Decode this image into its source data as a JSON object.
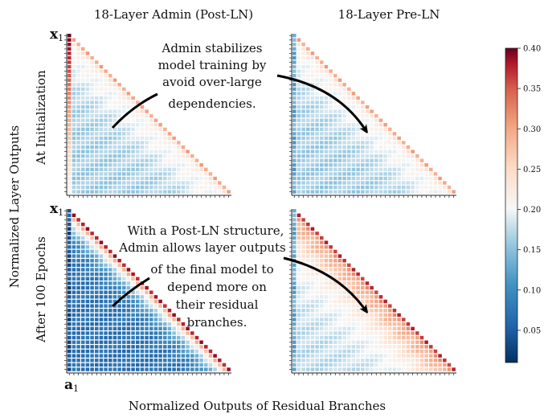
{
  "titles": {
    "left_column": "18-Layer Admin (Post-LN)",
    "right_column": "18-Layer Pre-LN"
  },
  "labels": {
    "ylabel": "Normalized Layer Outputs",
    "xlabel": "Normalized Outputs of Residual Branches",
    "row_top": "At Initialization",
    "row_bottom": "After 100 Epochs",
    "y_start_symbol": "x",
    "y_start_sub": "1",
    "x_start_symbol": "a",
    "x_start_sub": "1"
  },
  "annotations": {
    "top": [
      "Admin stabilizes",
      "model training by",
      "avoid over-large",
      "dependencies."
    ],
    "bottom": [
      "With a Post-LN structure,",
      "Admin allows layer outputs",
      "of the final model to",
      "depend more on",
      "their residual",
      "branches."
    ]
  },
  "colors": {
    "low": "#053061",
    "mid": "#f7f7f7",
    "high": "#67001f",
    "arrow": "#000000"
  },
  "chart_data": {
    "type": "heatmap",
    "colorbar": {
      "min": 0.01,
      "max": 0.4,
      "ticks": [
        "0.05",
        "0.10",
        "0.15",
        "0.20",
        "0.25",
        "0.30",
        "0.35",
        "0.40"
      ],
      "tick_values": [
        0.05,
        0.1,
        0.15,
        0.2,
        0.25,
        0.3,
        0.35,
        0.4
      ],
      "colormap": "RdBu_r"
    },
    "matrix_size": 36,
    "shape": "lower-triangular",
    "panels": [
      {
        "id": "admin-init",
        "row": "At Initialization",
        "column": "18-Layer Admin (Post-LN)",
        "first_col": 0.4,
        "diag": 0.3,
        "offdiag": 0.2,
        "far": 0.16,
        "decay": 0.07
      },
      {
        "id": "preln-init",
        "row": "At Initialization",
        "column": "18-Layer Pre-LN",
        "first_col": 0.13,
        "diag": 0.3,
        "offdiag": 0.2,
        "far": 0.16,
        "decay": 0.07
      },
      {
        "id": "admin-100",
        "row": "After 100 Epochs",
        "column": "18-Layer Admin (Post-LN)",
        "first_col": 0.04,
        "diag": 0.38,
        "offdiag": 0.26,
        "far": 0.07,
        "decay": 0.12
      },
      {
        "id": "preln-100",
        "row": "After 100 Epochs",
        "column": "18-Layer Pre-LN",
        "first_col": 0.13,
        "diag": 0.37,
        "offdiag": 0.28,
        "far": 0.17,
        "decay": 0.05
      }
    ]
  }
}
